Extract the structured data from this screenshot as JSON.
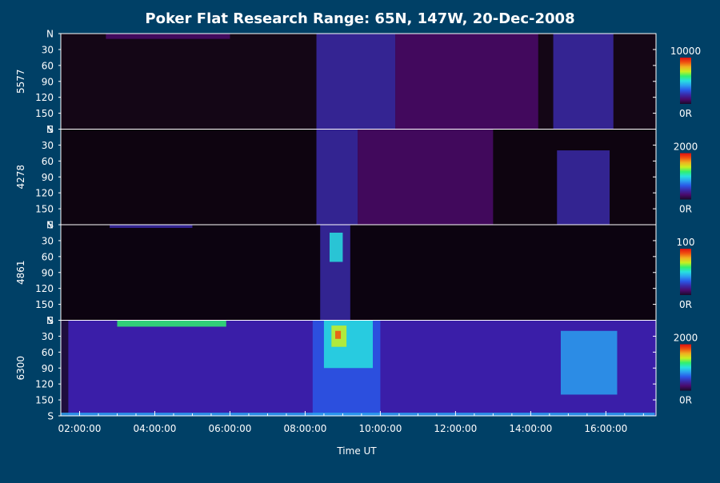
{
  "chart_data": {
    "type": "heatmap",
    "title": "Poker Flat Research Range: 65N, 147W, 20-Dec-2008",
    "xlabel": "Time UT",
    "x_range": [
      "01:30:00",
      "17:20:00"
    ],
    "x_ticks": [
      "02:00:00",
      "04:00:00",
      "06:00:00",
      "08:00:00",
      "10:00:00",
      "12:00:00",
      "14:00:00",
      "16:00:00"
    ],
    "y_ticks": [
      "N",
      "30",
      "60",
      "90",
      "120",
      "150",
      "S"
    ],
    "y_range": [
      0,
      180
    ],
    "panels": [
      {
        "ylabel": "5577",
        "scale_max_label": "10000",
        "scale_min_label": "0R",
        "background": "#140616",
        "features": [
          {
            "t0": 2.7,
            "t1": 6.0,
            "y0": 0,
            "y1": 10,
            "level": 0.12
          },
          {
            "t0": 8.3,
            "t1": 10.4,
            "y0": 0,
            "y1": 180,
            "level": 0.22
          },
          {
            "t0": 10.4,
            "t1": 14.2,
            "y0": 0,
            "y1": 180,
            "level": 0.1
          },
          {
            "t0": 14.6,
            "t1": 16.2,
            "y0": 0,
            "y1": 180,
            "level": 0.22
          }
        ]
      },
      {
        "ylabel": "4278",
        "scale_max_label": "2000",
        "scale_min_label": "0R",
        "background": "#0e0410",
        "features": [
          {
            "t0": 8.3,
            "t1": 9.4,
            "y0": 0,
            "y1": 180,
            "level": 0.18
          },
          {
            "t0": 9.4,
            "t1": 13.0,
            "y0": 0,
            "y1": 180,
            "level": 0.08
          },
          {
            "t0": 14.7,
            "t1": 16.1,
            "y0": 40,
            "y1": 180,
            "level": 0.22
          }
        ]
      },
      {
        "ylabel": "4861",
        "scale_max_label": "100",
        "scale_min_label": "0R",
        "background": "#0c0310",
        "features": [
          {
            "t0": 2.8,
            "t1": 5.0,
            "y0": 0,
            "y1": 6,
            "level": 0.2
          },
          {
            "t0": 8.4,
            "t1": 9.2,
            "y0": 0,
            "y1": 180,
            "level": 0.24
          },
          {
            "t0": 8.65,
            "t1": 9.0,
            "y0": 15,
            "y1": 70,
            "level": 0.5
          }
        ]
      },
      {
        "ylabel": "6300",
        "scale_max_label": "2000",
        "scale_min_label": "0R",
        "background": "#3a1ea8",
        "features": [
          {
            "t0": 1.5,
            "t1": 1.7,
            "y0": 0,
            "y1": 180,
            "level": 0.0
          },
          {
            "t0": 3.0,
            "t1": 5.9,
            "y0": 0,
            "y1": 12,
            "level": 0.55
          },
          {
            "t0": 8.2,
            "t1": 10.0,
            "y0": 0,
            "y1": 180,
            "level": 0.34
          },
          {
            "t0": 8.5,
            "t1": 9.8,
            "y0": 0,
            "y1": 90,
            "level": 0.5
          },
          {
            "t0": 8.7,
            "t1": 9.1,
            "y0": 10,
            "y1": 50,
            "level": 0.72
          },
          {
            "t0": 8.8,
            "t1": 8.95,
            "y0": 20,
            "y1": 35,
            "level": 0.9
          },
          {
            "t0": 14.8,
            "t1": 16.3,
            "y0": 20,
            "y1": 140,
            "level": 0.42
          },
          {
            "t0": 1.5,
            "t1": 17.3,
            "y0": 174,
            "y1": 180,
            "level": 0.4
          }
        ]
      }
    ],
    "colorscale": [
      "#1a0a2a",
      "#4a0a6a",
      "#3a2aa8",
      "#2a58e8",
      "#2aa0f0",
      "#28e0e0",
      "#30f070",
      "#c8f020",
      "#f0b020",
      "#f05010",
      "#e01010"
    ]
  }
}
